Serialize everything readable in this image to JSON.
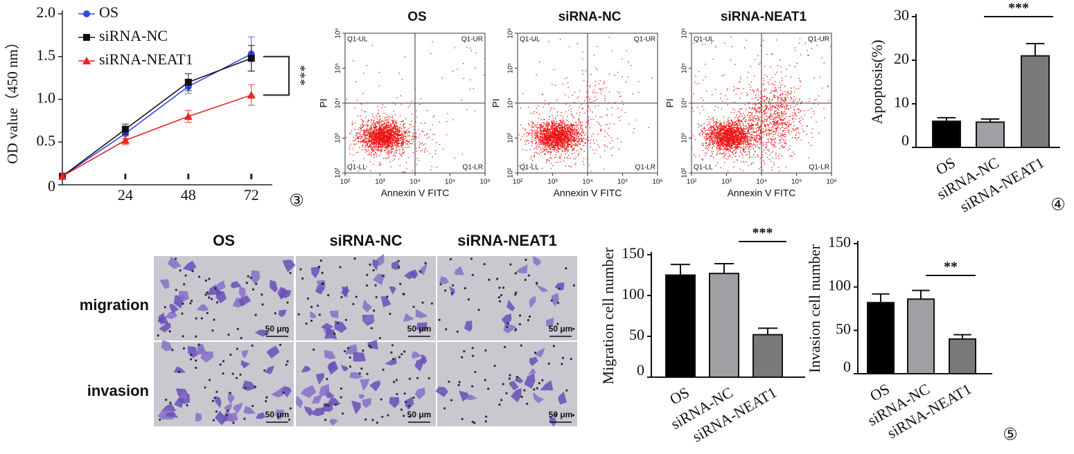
{
  "chart_data": [
    {
      "type": "line",
      "ylabel": "OD value（450 nm）",
      "x": [
        0,
        24,
        48,
        72
      ],
      "xlim": [
        0,
        80
      ],
      "xticks": [
        24,
        48,
        72
      ],
      "ylim": [
        0,
        2
      ],
      "yticks": [
        0,
        0.5,
        {
          "value": 1,
          "label": "1.0"
        },
        1.5,
        {
          "value": 2,
          "label": "2.0"
        }
      ],
      "series": [
        {
          "name": "OS",
          "color": "#3344ee",
          "marker": "circle",
          "values": [
            0.1,
            0.6,
            1.15,
            1.53
          ],
          "errors": [
            0.03,
            0.06,
            0.08,
            0.2
          ]
        },
        {
          "name": "siRNA-NC",
          "color": "#111111",
          "marker": "square",
          "values": [
            0.1,
            0.65,
            1.2,
            1.48
          ],
          "errors": [
            0.03,
            0.06,
            0.1,
            0.15
          ]
        },
        {
          "name": "siRNA-NEAT1",
          "color": "#ee2222",
          "marker": "triangle",
          "values": [
            0.1,
            0.52,
            0.8,
            1.05
          ],
          "errors": [
            0.03,
            0.05,
            0.07,
            0.12
          ]
        }
      ],
      "annotation": "***",
      "panel_label": "③"
    },
    {
      "type": "flow",
      "panels": [
        "OS",
        "siRNA-NC",
        "siRNA-NEAT1"
      ],
      "xlabel": "Annexin V FITC",
      "ylabel": "PI",
      "quadrants": [
        "Q1-UL",
        "Q1-UR",
        "Q1-LL",
        "Q1-LR"
      ],
      "log": true,
      "xlim": [
        100,
        1000000
      ],
      "ylim": [
        100,
        1000000
      ],
      "xticks": [
        {
          "value": 100,
          "label": "10²"
        },
        {
          "value": 1000,
          "label": "10³"
        },
        {
          "value": 10000,
          "label": "10⁴"
        },
        {
          "value": 100000,
          "label": "10⁵"
        },
        {
          "value": 1000000,
          "label": "10⁶"
        }
      ],
      "yticks": [
        {
          "value": 100,
          "label": "10²"
        },
        {
          "value": 1000,
          "label": "10³"
        },
        {
          "value": 10000,
          "label": "10⁴"
        },
        {
          "value": 100000,
          "label": "10⁵"
        },
        {
          "value": 1000000,
          "label": "10⁶"
        }
      ],
      "color": "#ee1111"
    },
    {
      "type": "bar",
      "ylabel": "Apoptosis(%)",
      "categories": [
        "OS",
        "siRNA-NC",
        "siRNA-NEAT1"
      ],
      "values": [
        6,
        5.8,
        21
      ],
      "errors": [
        0.8,
        0.7,
        2.8
      ],
      "colors": [
        "#000000",
        "#a0a0a4",
        "#7a7a7a"
      ],
      "ylim": [
        0,
        30
      ],
      "yticks": [
        0,
        10,
        20,
        30
      ],
      "annotation": "***",
      "panel_label": "④"
    },
    {
      "type": "images",
      "columns": [
        "OS",
        "siRNA-NC",
        "siRNA-NEAT1"
      ],
      "rows": [
        "migration",
        "invasion"
      ],
      "scale_bar": "50 μm"
    },
    {
      "type": "bar",
      "ylabel": "Migration cell number",
      "categories": [
        "OS",
        "siRNA-NC",
        "siRNA-NEAT1"
      ],
      "values": [
        125,
        127,
        52
      ],
      "errors": [
        13,
        12,
        8
      ],
      "colors": [
        "#000000",
        "#a0a0a4",
        "#7a7a7a"
      ],
      "ylim": [
        0,
        150
      ],
      "yticks": [
        0,
        50,
        100,
        150
      ],
      "annotation": "***"
    },
    {
      "type": "bar",
      "ylabel": "Invasion cell number",
      "categories": [
        "OS",
        "siRNA-NC",
        "siRNA-NEAT1"
      ],
      "values": [
        82,
        86,
        40
      ],
      "errors": [
        10,
        10,
        5
      ],
      "colors": [
        "#000000",
        "#a0a0a4",
        "#7a7a7a"
      ],
      "ylim": [
        0,
        150
      ],
      "yticks": [
        0,
        50,
        100,
        150
      ],
      "annotation": "**",
      "panel_label": "⑤"
    }
  ]
}
